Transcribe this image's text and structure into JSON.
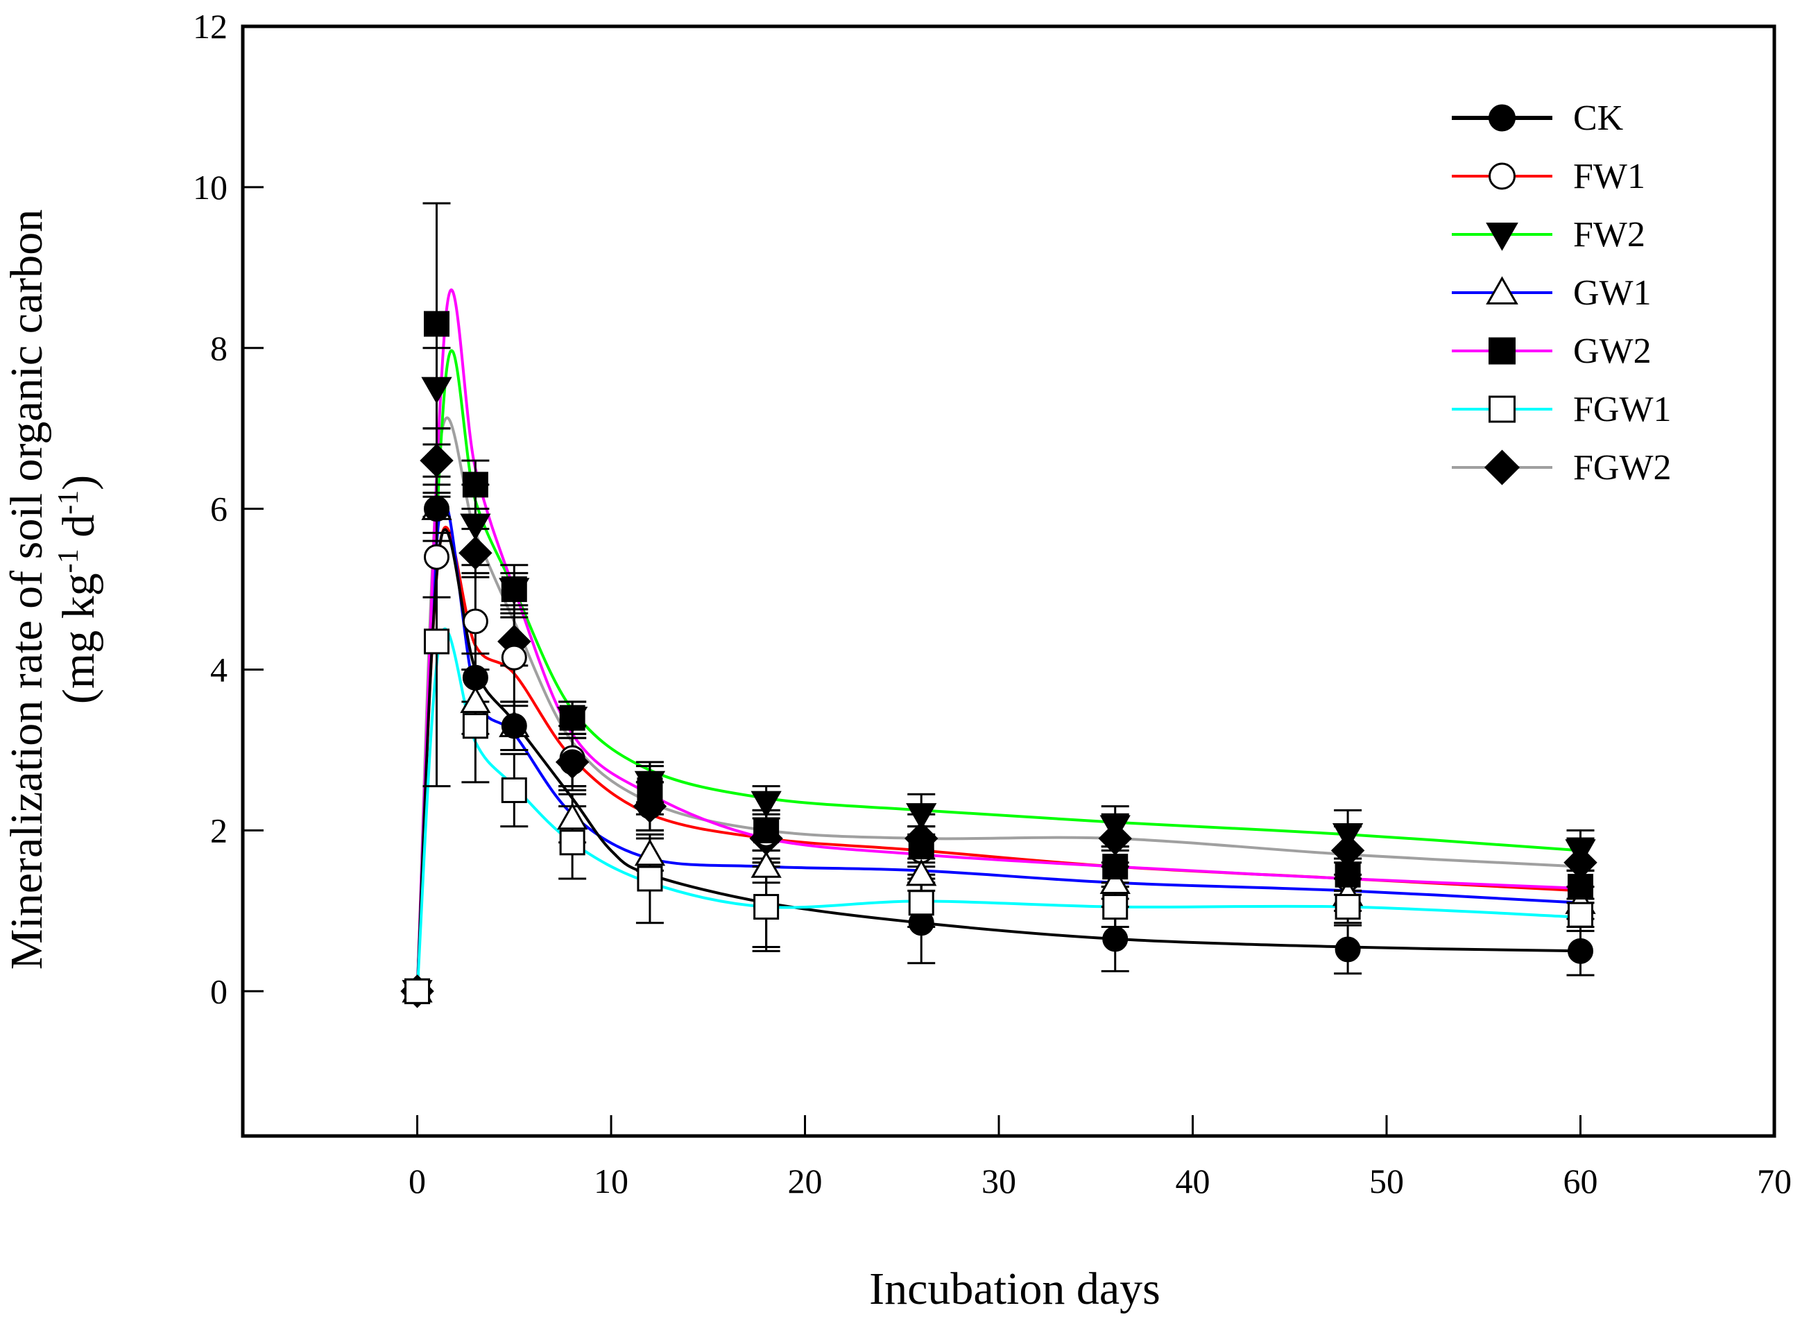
{
  "chart_data": {
    "type": "line",
    "title": "",
    "xlabel": "Incubation days",
    "ylabel_line1": "Mineralization rate of  soil organic carbon",
    "ylabel_line2": {
      "open": "(mg kg",
      "sup1": "-1",
      "mid": " d",
      "sup2": "-1",
      "close": ")"
    },
    "xlim": [
      -9,
      70
    ],
    "ylim": [
      -1.8,
      12
    ],
    "x_ticks": [
      0,
      10,
      20,
      30,
      40,
      50,
      60,
      70
    ],
    "y_ticks": [
      0,
      2,
      4,
      6,
      8,
      10,
      12
    ],
    "x_tick_labels": [
      "0",
      "10",
      "20",
      "30",
      "40",
      "50",
      "60",
      "70"
    ],
    "y_tick_labels": [
      "0",
      "2",
      "4",
      "6",
      "8",
      "10",
      "12"
    ],
    "grid": false,
    "legend_position": "top-right",
    "x": [
      0,
      1,
      3,
      5,
      8,
      12,
      18,
      26,
      36,
      48,
      60
    ],
    "series": [
      {
        "name": "CK",
        "color": "#000000",
        "marker": "circle",
        "filled": true,
        "z": 6,
        "values": [
          0,
          6.0,
          3.9,
          3.3,
          2.85,
          2.3,
          1.05,
          0.85,
          0.65,
          0.52,
          0.5
        ],
        "errors": [
          0,
          0.3,
          0.3,
          0.3,
          0.3,
          0.3,
          0.55,
          0.5,
          0.4,
          0.3,
          0.3
        ],
        "fit": [
          [
            0,
            0
          ],
          [
            1.2,
            5.6
          ],
          [
            3,
            4.0
          ],
          [
            5,
            3.35
          ],
          [
            8,
            2.4
          ],
          [
            10,
            1.75
          ],
          [
            12,
            1.45
          ],
          [
            18,
            1.1
          ],
          [
            26,
            0.85
          ],
          [
            36,
            0.65
          ],
          [
            48,
            0.55
          ],
          [
            60,
            0.5
          ]
        ]
      },
      {
        "name": "FW1",
        "color": "#ff0000",
        "marker": "circle",
        "filled": false,
        "z": 3,
        "values": [
          0,
          5.4,
          4.6,
          4.15,
          2.9,
          2.3,
          1.95,
          1.75,
          1.55,
          1.4,
          1.3
        ],
        "errors": [
          0,
          0.5,
          0.6,
          0.6,
          0.4,
          0.3,
          0.3,
          0.3,
          0.25,
          0.2,
          0.2
        ],
        "fit": [
          [
            0,
            0
          ],
          [
            1.2,
            5.6
          ],
          [
            3,
            4.3
          ],
          [
            5,
            3.95
          ],
          [
            8,
            2.9
          ],
          [
            12,
            2.2
          ],
          [
            18,
            1.9
          ],
          [
            26,
            1.75
          ],
          [
            36,
            1.55
          ],
          [
            48,
            1.4
          ],
          [
            60,
            1.25
          ]
        ]
      },
      {
        "name": "FW2",
        "color": "#00ff00",
        "marker": "triangle-down",
        "filled": true,
        "z": 2,
        "values": [
          0,
          7.5,
          5.8,
          5.0,
          3.4,
          2.6,
          2.35,
          2.2,
          2.05,
          1.95,
          1.75
        ],
        "errors": [
          0,
          0.5,
          0.5,
          0.3,
          0.2,
          0.25,
          0.2,
          0.25,
          0.25,
          0.3,
          0.25
        ],
        "fit": [
          [
            0,
            0
          ],
          [
            1.5,
            7.7
          ],
          [
            3,
            6.1
          ],
          [
            5,
            5.0
          ],
          [
            8,
            3.5
          ],
          [
            12,
            2.75
          ],
          [
            18,
            2.4
          ],
          [
            26,
            2.25
          ],
          [
            36,
            2.1
          ],
          [
            48,
            1.95
          ],
          [
            60,
            1.75
          ]
        ]
      },
      {
        "name": "GW1",
        "color": "#0000ff",
        "marker": "triangle-up",
        "filled": false,
        "z": 4,
        "values": [
          0,
          6.0,
          3.6,
          3.3,
          2.15,
          1.7,
          1.55,
          1.45,
          1.35,
          1.2,
          1.1
        ],
        "errors": [
          0,
          0.4,
          0.4,
          0.3,
          0.3,
          0.2,
          0.2,
          0.2,
          0.2,
          0.2,
          0.2
        ],
        "fit": [
          [
            0,
            0
          ],
          [
            1.2,
            6.0
          ],
          [
            3,
            3.7
          ],
          [
            5,
            3.2
          ],
          [
            8,
            2.2
          ],
          [
            12,
            1.65
          ],
          [
            18,
            1.55
          ],
          [
            26,
            1.5
          ],
          [
            36,
            1.35
          ],
          [
            48,
            1.25
          ],
          [
            60,
            1.1
          ]
        ]
      },
      {
        "name": "GW2",
        "color": "#ff00ff",
        "marker": "square",
        "filled": true,
        "z": 5,
        "values": [
          0,
          8.3,
          6.3,
          5.0,
          3.4,
          2.5,
          2.0,
          1.8,
          1.55,
          1.45,
          1.3
        ],
        "errors": [
          0,
          1.5,
          0.3,
          0.2,
          0.2,
          0.3,
          0.25,
          0.25,
          0.2,
          0.2,
          0.2
        ],
        "fit": [
          [
            0,
            0
          ],
          [
            1.5,
            8.45
          ],
          [
            3,
            6.5
          ],
          [
            5,
            5.0
          ],
          [
            8,
            3.2
          ],
          [
            12,
            2.45
          ],
          [
            18,
            1.9
          ],
          [
            26,
            1.7
          ],
          [
            36,
            1.55
          ],
          [
            48,
            1.4
          ],
          [
            60,
            1.28
          ]
        ]
      },
      {
        "name": "FGW1",
        "color": "#00ffff",
        "marker": "square",
        "filled": false,
        "z": 7,
        "values": [
          0,
          4.35,
          3.3,
          2.5,
          1.85,
          1.4,
          1.05,
          1.1,
          1.05,
          1.05,
          0.95
        ],
        "errors": [
          0,
          1.8,
          0.7,
          0.45,
          0.45,
          0.55,
          0.5,
          0.3,
          0.25,
          0.2,
          0.2
        ],
        "fit": [
          [
            0,
            0
          ],
          [
            1.2,
            4.4
          ],
          [
            3,
            3.1
          ],
          [
            5,
            2.55
          ],
          [
            8,
            1.85
          ],
          [
            12,
            1.35
          ],
          [
            18,
            1.05
          ],
          [
            26,
            1.12
          ],
          [
            36,
            1.05
          ],
          [
            48,
            1.05
          ],
          [
            60,
            0.92
          ]
        ]
      },
      {
        "name": "FGW2",
        "color": "#a0a0a0",
        "marker": "diamond",
        "filled": true,
        "z": 1,
        "values": [
          0,
          6.6,
          5.45,
          4.35,
          2.85,
          2.3,
          1.9,
          1.9,
          1.9,
          1.75,
          1.6
        ],
        "errors": [
          0,
          0.4,
          0.3,
          0.3,
          0.3,
          0.3,
          0.3,
          0.3,
          0.3,
          0.3,
          0.3
        ],
        "fit": [
          [
            0,
            0
          ],
          [
            1.2,
            6.85
          ],
          [
            3,
            5.7
          ],
          [
            5,
            4.6
          ],
          [
            8,
            3.1
          ],
          [
            12,
            2.35
          ],
          [
            18,
            2.0
          ],
          [
            26,
            1.9
          ],
          [
            36,
            1.9
          ],
          [
            48,
            1.7
          ],
          [
            60,
            1.55
          ]
        ]
      }
    ]
  }
}
